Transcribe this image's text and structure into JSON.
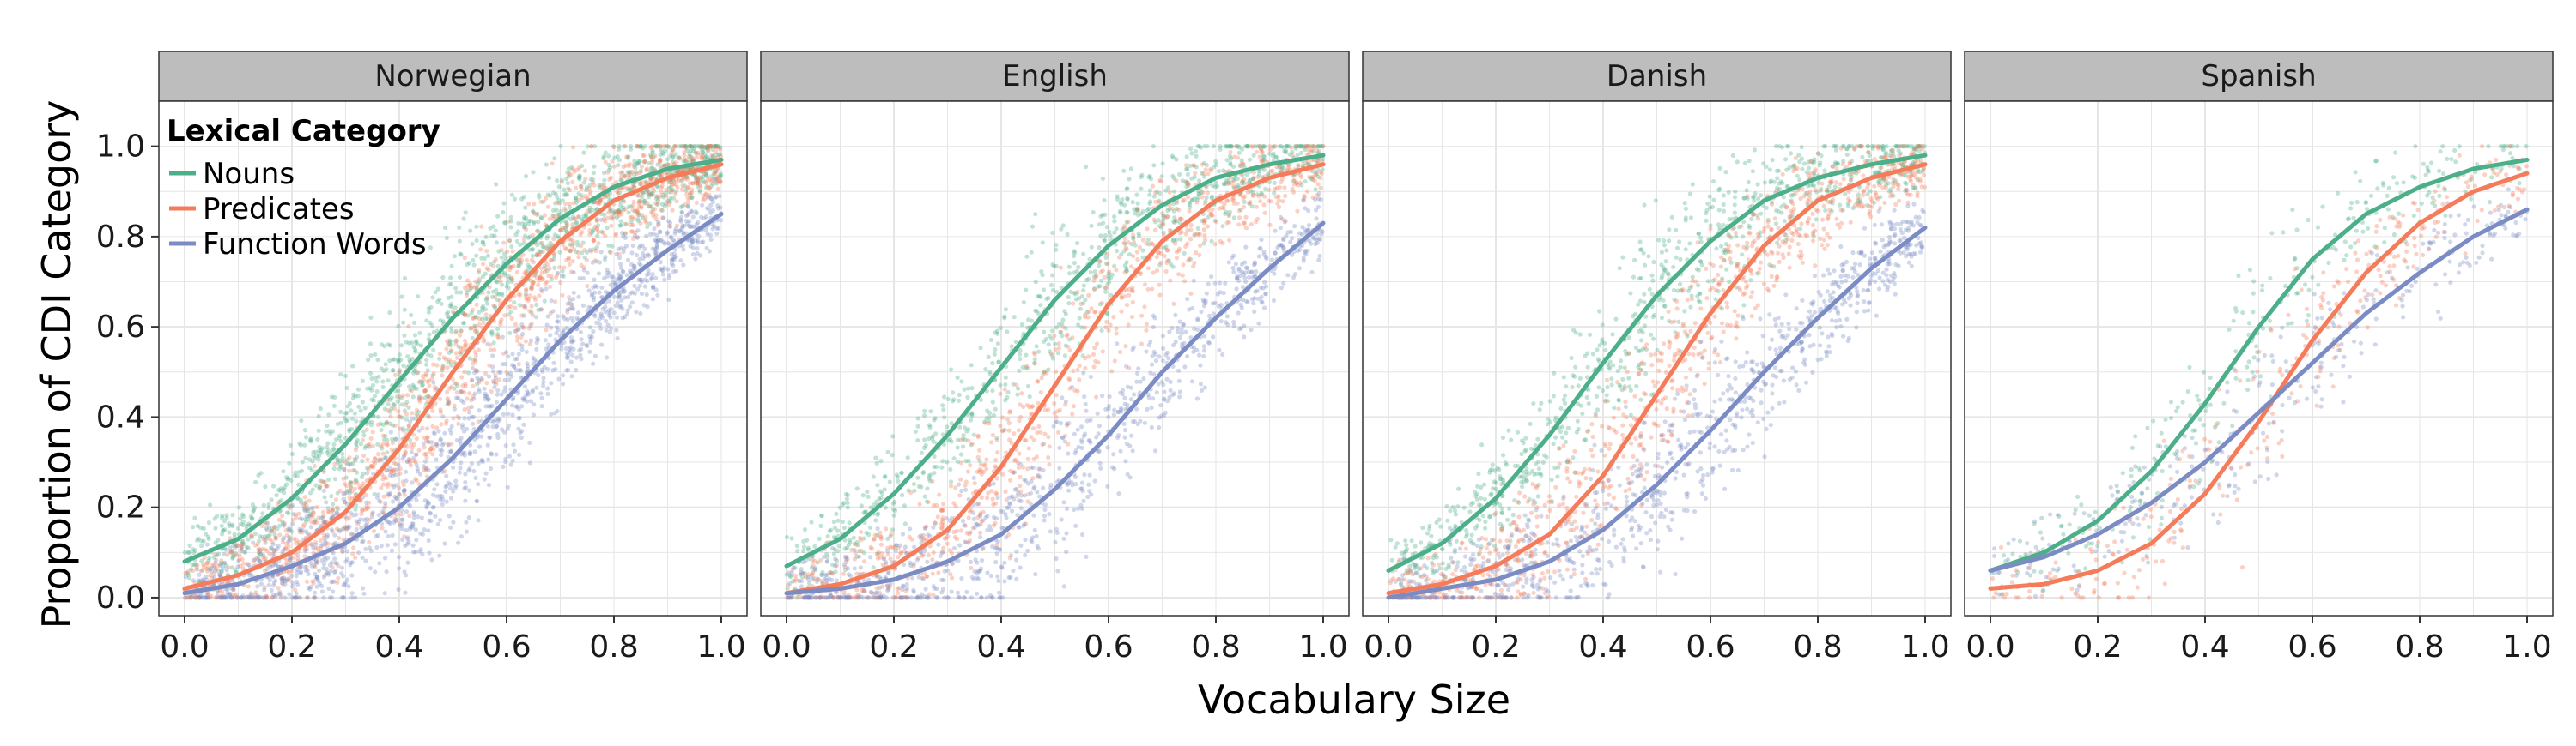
{
  "chart_data": {
    "type": "scatter",
    "xlabel": "Vocabulary Size",
    "ylabel": "Proportion of CDI Category",
    "xlim": [
      0,
      1
    ],
    "ylim": [
      -0.04,
      1.1
    ],
    "x_ticks": [
      "0.0",
      "0.2",
      "0.4",
      "0.6",
      "0.8",
      "1.0"
    ],
    "y_ticks": [
      "0.0",
      "0.2",
      "0.4",
      "0.6",
      "0.8",
      "1.0"
    ],
    "grid": true,
    "legend": {
      "title": "Lexical Category",
      "placement": "top-left, inside first panel",
      "entries": [
        "Nouns",
        "Predicates",
        "Function Words"
      ]
    },
    "colors": {
      "Nouns": "#4daf8a",
      "Predicates": "#f47c5a",
      "Function Words": "#7b8cc4",
      "strip_fill": "#bdbdbd",
      "panel_border": "#333333",
      "grid": "#e6e6e6"
    },
    "facets": [
      {
        "name": "Norwegian",
        "point_density": "high",
        "series": [
          {
            "name": "Nouns",
            "fit_x": [
              0,
              0.1,
              0.2,
              0.3,
              0.4,
              0.5,
              0.6,
              0.7,
              0.8,
              0.9,
              1.0
            ],
            "fit_y": [
              0.08,
              0.13,
              0.22,
              0.34,
              0.48,
              0.62,
              0.74,
              0.84,
              0.91,
              0.95,
              0.97
            ]
          },
          {
            "name": "Predicates",
            "fit_x": [
              0,
              0.1,
              0.2,
              0.3,
              0.4,
              0.5,
              0.6,
              0.7,
              0.8,
              0.9,
              1.0
            ],
            "fit_y": [
              0.02,
              0.05,
              0.1,
              0.19,
              0.33,
              0.5,
              0.66,
              0.79,
              0.88,
              0.93,
              0.96
            ]
          },
          {
            "name": "Function Words",
            "fit_x": [
              0,
              0.1,
              0.2,
              0.3,
              0.4,
              0.5,
              0.6,
              0.7,
              0.8,
              0.9,
              1.0
            ],
            "fit_y": [
              0.01,
              0.03,
              0.07,
              0.12,
              0.2,
              0.31,
              0.44,
              0.57,
              0.68,
              0.77,
              0.85
            ]
          }
        ]
      },
      {
        "name": "English",
        "point_density": "medium",
        "series": [
          {
            "name": "Nouns",
            "fit_x": [
              0,
              0.1,
              0.2,
              0.3,
              0.4,
              0.5,
              0.6,
              0.7,
              0.8,
              0.9,
              1.0
            ],
            "fit_y": [
              0.07,
              0.13,
              0.23,
              0.36,
              0.51,
              0.66,
              0.78,
              0.87,
              0.93,
              0.96,
              0.98
            ]
          },
          {
            "name": "Predicates",
            "fit_x": [
              0,
              0.1,
              0.2,
              0.3,
              0.4,
              0.5,
              0.6,
              0.7,
              0.8,
              0.9,
              1.0
            ],
            "fit_y": [
              0.01,
              0.03,
              0.07,
              0.15,
              0.29,
              0.47,
              0.65,
              0.79,
              0.88,
              0.93,
              0.96
            ]
          },
          {
            "name": "Function Words",
            "fit_x": [
              0,
              0.1,
              0.2,
              0.3,
              0.4,
              0.5,
              0.6,
              0.7,
              0.8,
              0.9,
              1.0
            ],
            "fit_y": [
              0.01,
              0.02,
              0.04,
              0.08,
              0.14,
              0.24,
              0.36,
              0.5,
              0.62,
              0.73,
              0.83
            ]
          }
        ]
      },
      {
        "name": "Danish",
        "point_density": "medium",
        "series": [
          {
            "name": "Nouns",
            "fit_x": [
              0,
              0.1,
              0.2,
              0.3,
              0.4,
              0.5,
              0.6,
              0.7,
              0.8,
              0.9,
              1.0
            ],
            "fit_y": [
              0.06,
              0.12,
              0.22,
              0.36,
              0.52,
              0.67,
              0.79,
              0.88,
              0.93,
              0.96,
              0.98
            ]
          },
          {
            "name": "Predicates",
            "fit_x": [
              0,
              0.1,
              0.2,
              0.3,
              0.4,
              0.5,
              0.6,
              0.7,
              0.8,
              0.9,
              1.0
            ],
            "fit_y": [
              0.01,
              0.03,
              0.07,
              0.14,
              0.27,
              0.45,
              0.63,
              0.78,
              0.88,
              0.93,
              0.96
            ]
          },
          {
            "name": "Function Words",
            "fit_x": [
              0,
              0.1,
              0.2,
              0.3,
              0.4,
              0.5,
              0.6,
              0.7,
              0.8,
              0.9,
              1.0
            ],
            "fit_y": [
              0.0,
              0.02,
              0.04,
              0.08,
              0.15,
              0.25,
              0.37,
              0.5,
              0.62,
              0.73,
              0.82
            ]
          }
        ]
      },
      {
        "name": "Spanish",
        "point_density": "low",
        "series": [
          {
            "name": "Nouns",
            "fit_x": [
              0,
              0.1,
              0.2,
              0.3,
              0.4,
              0.5,
              0.6,
              0.7,
              0.8,
              0.9,
              1.0
            ],
            "fit_y": [
              0.06,
              0.1,
              0.17,
              0.28,
              0.43,
              0.6,
              0.75,
              0.85,
              0.91,
              0.95,
              0.97
            ]
          },
          {
            "name": "Predicates",
            "fit_x": [
              0,
              0.1,
              0.2,
              0.3,
              0.4,
              0.5,
              0.6,
              0.7,
              0.8,
              0.9,
              1.0
            ],
            "fit_y": [
              0.02,
              0.03,
              0.06,
              0.12,
              0.23,
              0.39,
              0.57,
              0.72,
              0.83,
              0.9,
              0.94
            ]
          },
          {
            "name": "Function Words",
            "fit_x": [
              0,
              0.1,
              0.2,
              0.3,
              0.4,
              0.5,
              0.6,
              0.7,
              0.8,
              0.9,
              1.0
            ],
            "fit_y": [
              0.06,
              0.09,
              0.14,
              0.21,
              0.3,
              0.41,
              0.52,
              0.63,
              0.72,
              0.8,
              0.86
            ]
          }
        ]
      }
    ]
  }
}
